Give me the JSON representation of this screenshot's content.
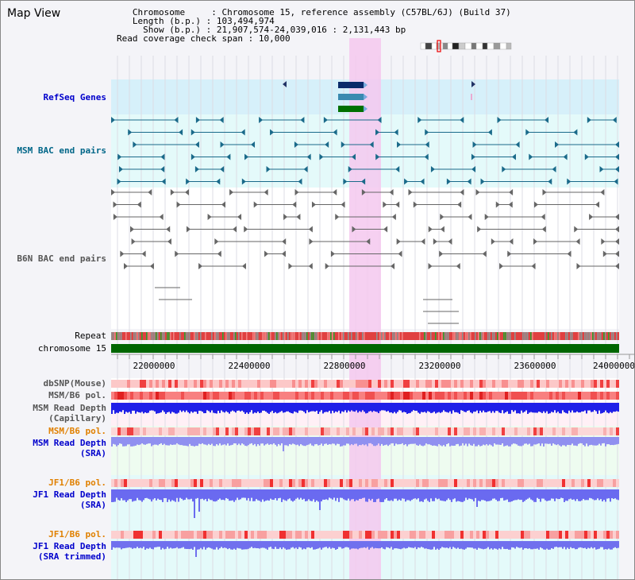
{
  "title": "Map View",
  "info": {
    "chromosome_key": "Chromosome     ",
    "chromosome_val": "Chromosome 15, reference assembly (C57BL/6J) (Build 37)",
    "length_key": "Length (b.p.)",
    "length_val": "103,494,974",
    "show_key": "Show (b.p.)",
    "show_val": "21,907,574-24,039,016 : 2,131,443 bp",
    "coverage_key": "Read coverage check span",
    "coverage_val": "10,000"
  },
  "tracks": {
    "refseq": "RefSeq Genes",
    "msm_bac": "MSM BAC end pairs",
    "b6n_bac": "B6N BAC end pairs",
    "repeat": "Repeat",
    "chromosome": "chromosome 15",
    "dbsnp": "dbSNP(Mouse)",
    "msm_b6_pol_1": "MSM/B6 pol.",
    "msm_depth_cap_1": "MSM Read Depth",
    "msm_depth_cap_2": "(Capillary)",
    "msm_b6_pol_2": "MSM/B6 pol.",
    "msm_depth_sra_1": "MSM Read Depth",
    "msm_depth_sra_2": "(SRA)",
    "jf1_b6_pol_1": "JF1/B6 pol.",
    "jf1_depth_sra_1": "JF1 Read Depth",
    "jf1_depth_sra_2": "(SRA)",
    "jf1_b6_pol_2": "JF1/B6 pol.",
    "jf1_depth_trim_1": "JF1 Read Depth",
    "jf1_depth_trim_2": "(SRA trimmed)"
  },
  "axis": {
    "ticks": [
      "22000000",
      "22400000",
      "22800000",
      "23200000",
      "23600000",
      "24000000"
    ]
  },
  "colors": {
    "refseq_label": "#0000cc",
    "msm_bac_label": "#006688",
    "b6n_label": "#444444",
    "pol_orange": "#e08000",
    "depth_blue": "#0000cc",
    "highlight": "#f4c8ee",
    "chromosome_bar": "#006600"
  }
}
